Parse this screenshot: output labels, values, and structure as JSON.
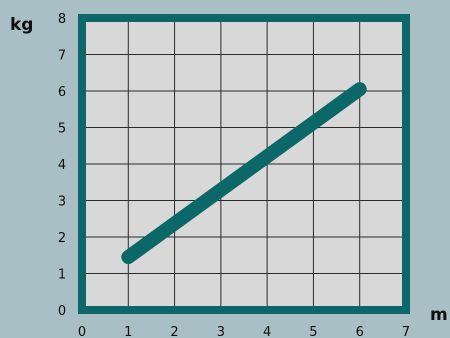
{
  "chart_data": {
    "type": "line",
    "xlabel": "m",
    "ylabel": "kg",
    "xlim": [
      0,
      7
    ],
    "ylim": [
      0,
      8
    ],
    "x_ticks": [
      "0",
      "1",
      "2",
      "3",
      "4",
      "5",
      "6",
      "7"
    ],
    "y_ticks": [
      "0",
      "1",
      "2",
      "3",
      "4",
      "5",
      "6",
      "7",
      "8"
    ],
    "grid": true,
    "series": [
      {
        "x": [
          1,
          6
        ],
        "y": [
          1.45,
          6.05
        ],
        "color": "#0b6768"
      }
    ]
  },
  "colors": {
    "background": "#a9bfc6",
    "plot_area": "#d8d8d8",
    "frame": "#0b6768",
    "grid": "#2a2a2a",
    "line": "#0b6768"
  }
}
